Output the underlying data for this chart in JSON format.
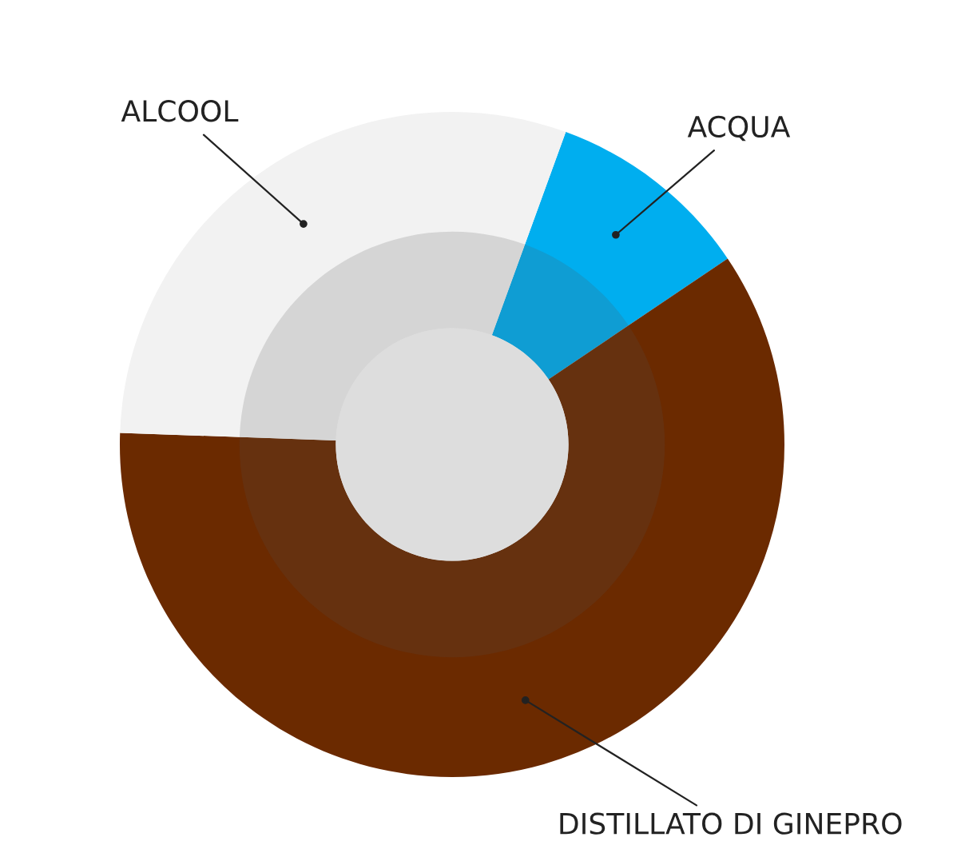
{
  "chart_data": {
    "type": "donut",
    "categories": [
      "ACQUA",
      "DISTILLATO DI GINEPRO",
      "ALCOOL"
    ],
    "values": [
      10,
      60,
      30
    ],
    "colors": [
      "#00aeef",
      "#6b2a00",
      "#f2f2f2"
    ],
    "legend": false
  }
}
